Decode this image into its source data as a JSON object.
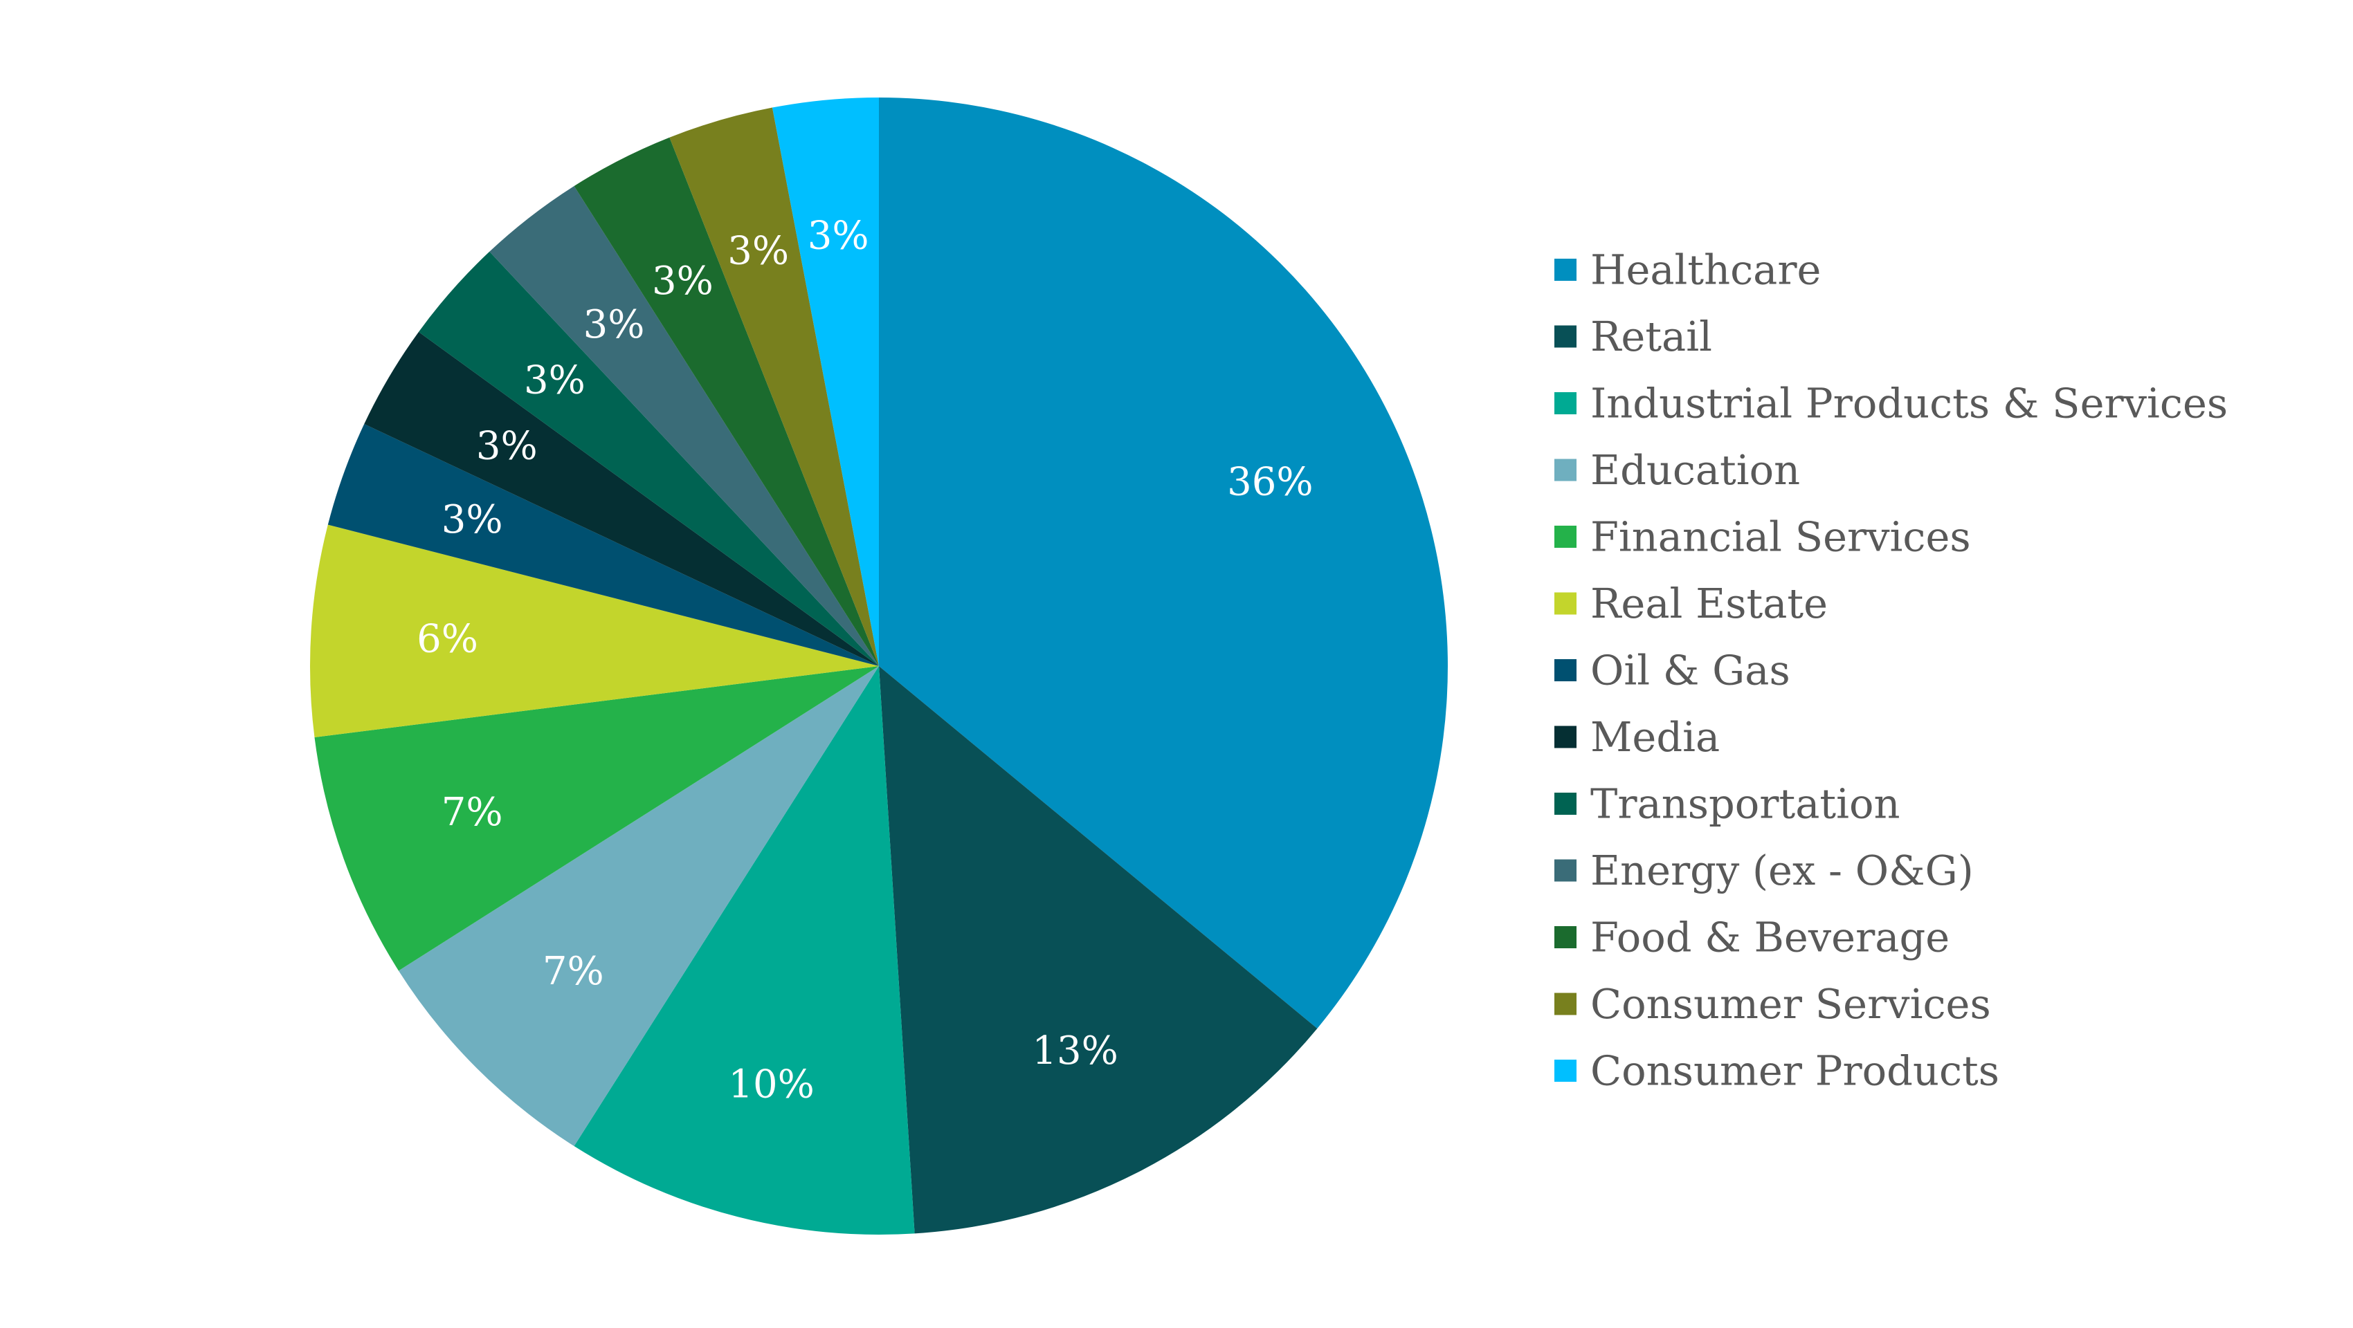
{
  "chart_data": {
    "type": "pie",
    "start_angle_deg": 0,
    "direction": "clockwise",
    "legend_position": "right",
    "slices": [
      {
        "name": "Healthcare",
        "value": 36,
        "label": "36%",
        "color": "#008FBF"
      },
      {
        "name": "Retail",
        "value": 13,
        "label": "13%",
        "color": "#085056"
      },
      {
        "name": "Industrial Products & Services",
        "value": 10,
        "label": "10%",
        "color": "#00AA93"
      },
      {
        "name": "Education",
        "value": 7,
        "label": "7%",
        "color": "#6FAFBF"
      },
      {
        "name": "Financial Services",
        "value": 7,
        "label": "7%",
        "color": "#24B24A"
      },
      {
        "name": "Real Estate",
        "value": 6,
        "label": "6%",
        "color": "#C3D52C"
      },
      {
        "name": "Oil & Gas",
        "value": 3,
        "label": "3%",
        "color": "#005070"
      },
      {
        "name": "Media",
        "value": 3,
        "label": "3%",
        "color": "#052F33"
      },
      {
        "name": "Transportation",
        "value": 3,
        "label": "3%",
        "color": "#006352"
      },
      {
        "name": "Energy (ex - O&G)",
        "value": 3,
        "label": "3%",
        "color": "#3A6C78"
      },
      {
        "name": "Food & Beverage",
        "value": 3,
        "label": "3%",
        "color": "#1B6B2E"
      },
      {
        "name": "Consumer Services",
        "value": 3,
        "label": "3%",
        "color": "#78801E"
      },
      {
        "name": "Consumer Products",
        "value": 3,
        "label": "3%",
        "color": "#00BFFF"
      }
    ]
  }
}
